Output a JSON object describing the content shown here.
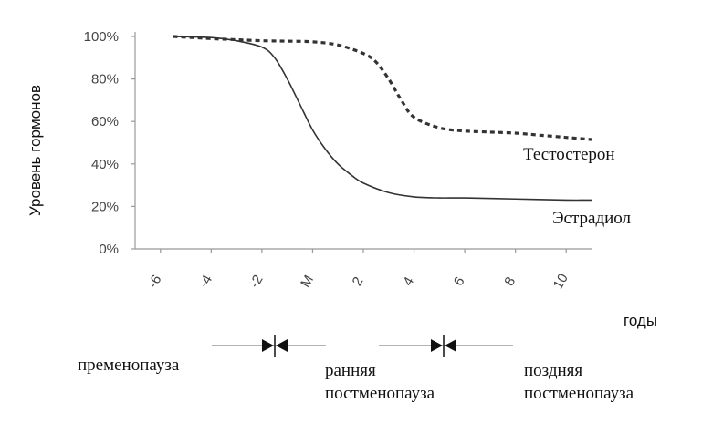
{
  "chart_data": {
    "type": "line",
    "ylabel": "Уровень гормонов",
    "xlabel": "",
    "x_unit_label": "годы",
    "x_tick_labels": [
      "-6",
      "-4",
      "-2",
      "M",
      "2",
      "4",
      "6",
      "8",
      "10"
    ],
    "x_tick_values": [
      -6,
      -4,
      -2,
      0,
      2,
      4,
      6,
      8,
      10
    ],
    "xlim": [
      -7,
      11
    ],
    "y_tick_labels": [
      "0%",
      "20%",
      "40%",
      "60%",
      "80%",
      "100%"
    ],
    "y_tick_values": [
      0,
      20,
      40,
      60,
      80,
      100
    ],
    "ylim": [
      0,
      100
    ],
    "grid": false,
    "series": [
      {
        "name": "Тестостерон",
        "style": "dashed",
        "color": "#333333",
        "x": [
          -5.5,
          -4,
          -3,
          -2,
          -1,
          0,
          1,
          2,
          2.5,
          3,
          3.5,
          4,
          5,
          6,
          7,
          8,
          9,
          10,
          11
        ],
        "y": [
          100,
          99,
          98.5,
          98,
          97.8,
          97.5,
          96,
          92,
          88,
          80,
          70,
          62,
          57,
          55.5,
          55,
          54.5,
          53.5,
          52.5,
          51.5
        ]
      },
      {
        "name": "Эстрадиол",
        "style": "solid",
        "color": "#333333",
        "x": [
          -5.5,
          -4,
          -3,
          -2,
          -1.5,
          -1,
          -0.5,
          0,
          0.5,
          1,
          1.5,
          2,
          3,
          4,
          5,
          6,
          8,
          10,
          11
        ],
        "y": [
          100,
          99.5,
          98,
          95,
          90,
          80,
          68,
          56,
          47,
          40,
          35,
          31,
          26.5,
          24.5,
          24,
          24,
          23.5,
          23,
          23
        ]
      }
    ],
    "phases": {
      "labels": [
        "пременопауза",
        "ранняя\nпостменопауза",
        "поздняя\nпостменопауза"
      ],
      "boundaries_x": [
        -0.5,
        5.2
      ]
    }
  }
}
